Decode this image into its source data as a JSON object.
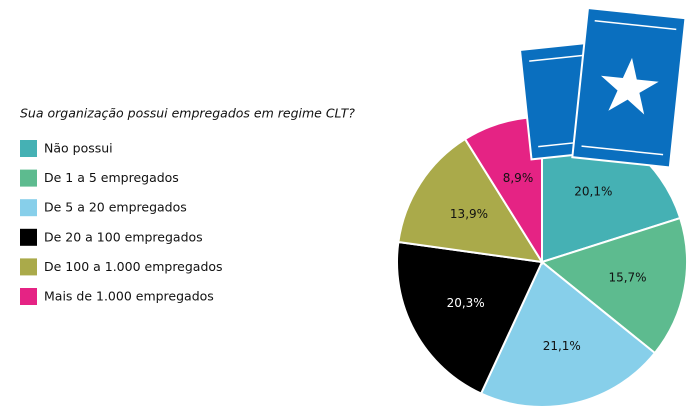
{
  "chart_data": {
    "type": "pie",
    "title": "Sua organização possui empregados em regime CLT?",
    "categories": [
      "Não possui",
      "De 1 a 5 empregados",
      "De 5 a 20 empregados",
      "De 20 a 100 empregados",
      "De 100 a 1.000 empregados",
      "Mais de 1.000 empregados"
    ],
    "values": [
      20.1,
      15.7,
      21.1,
      20.3,
      13.9,
      8.9
    ],
    "value_labels": [
      "20,1%",
      "15,7%",
      "21,1%",
      "20,3%",
      "13,9%",
      "8,9%"
    ],
    "colors": [
      "#45b1b4",
      "#5dbb8f",
      "#87cfea",
      "#000000",
      "#aaaa4a",
      "#e52384"
    ]
  }
}
